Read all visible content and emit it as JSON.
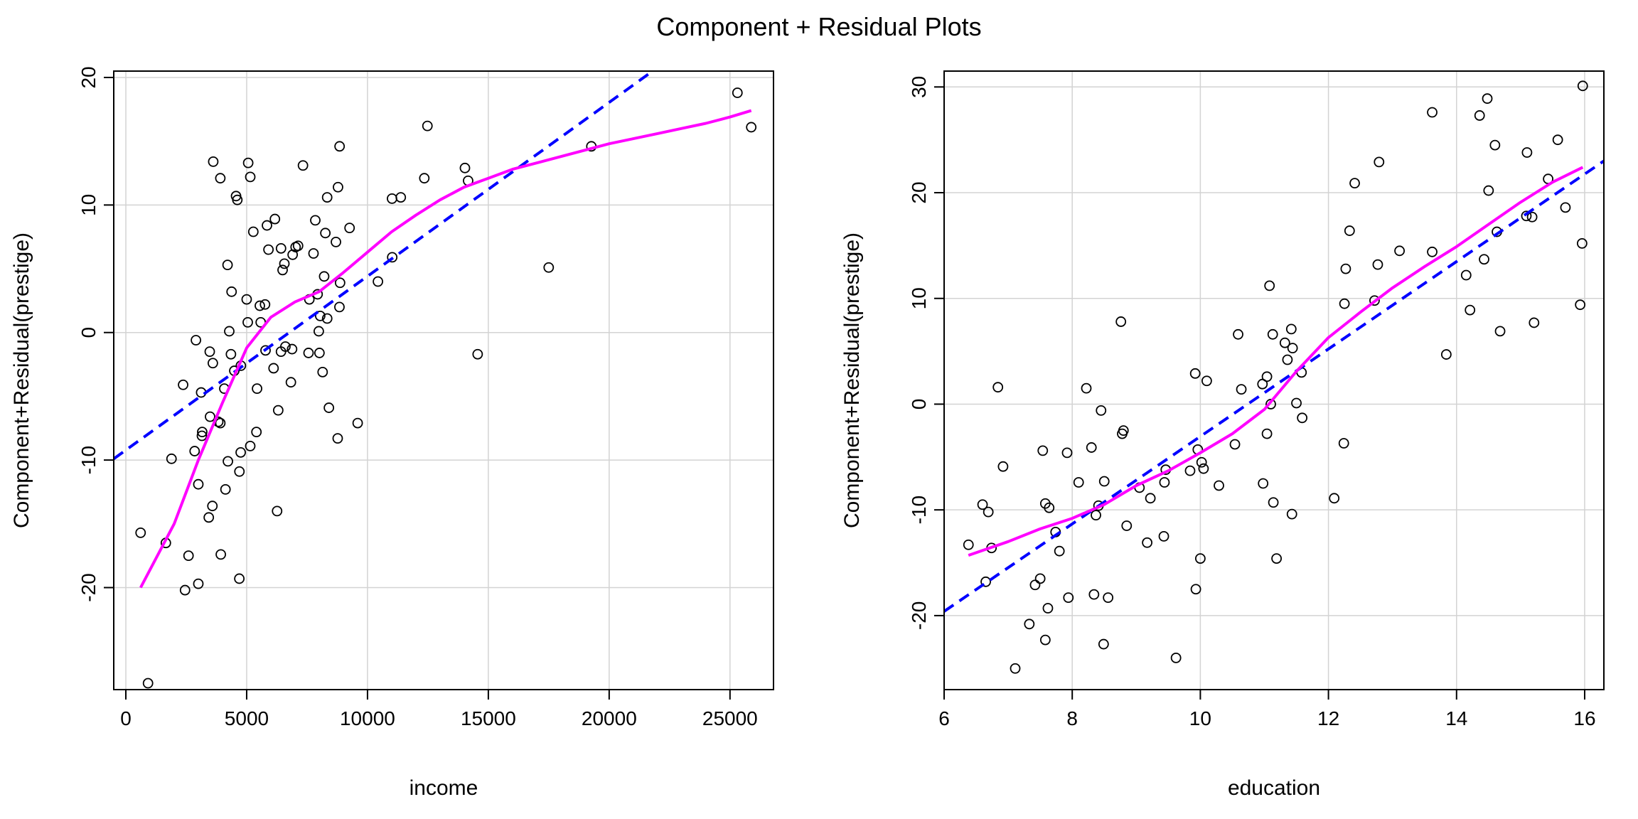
{
  "title": "Component + Residual Plots",
  "colors": {
    "points": "#000000",
    "fit_line": "#0000ff",
    "smooth_line": "#ff00ff",
    "grid": "#d3d3d3"
  },
  "chart_data": [
    {
      "type": "scatter",
      "title": "",
      "xlabel": "income",
      "ylabel": "Component+Residual(prestige)",
      "xlim": [
        -500,
        26800
      ],
      "ylim": [
        -28,
        20.5
      ],
      "xticks": [
        0,
        5000,
        10000,
        15000,
        20000,
        25000
      ],
      "yticks": [
        -20,
        -10,
        0,
        10,
        20
      ],
      "grid": true,
      "points": [
        [
          611,
          -15.7
        ],
        [
          918,
          -27.5
        ],
        [
          1656,
          -16.5
        ],
        [
          1890,
          -9.9
        ],
        [
          2370,
          -4.1
        ],
        [
          2450,
          -20.2
        ],
        [
          2594,
          -17.5
        ],
        [
          2847,
          -9.3
        ],
        [
          2901,
          -0.6
        ],
        [
          3000,
          -11.9
        ],
        [
          3000,
          -19.7
        ],
        [
          3161,
          -7.8
        ],
        [
          3148,
          -8.1
        ],
        [
          3116,
          -4.7
        ],
        [
          3485,
          -6.6
        ],
        [
          3432,
          -14.5
        ],
        [
          3472,
          -1.5
        ],
        [
          3582,
          -13.6
        ],
        [
          3600,
          -2.4
        ],
        [
          3617,
          13.4
        ],
        [
          3825,
          -7.0
        ],
        [
          3910,
          12.1
        ],
        [
          3930,
          -17.4
        ],
        [
          3910,
          -7.1
        ],
        [
          4075,
          -4.4
        ],
        [
          4123,
          -12.3
        ],
        [
          4209,
          5.3
        ],
        [
          4224,
          -10.1
        ],
        [
          4280,
          0.1
        ],
        [
          4349,
          -1.7
        ],
        [
          4376,
          3.2
        ],
        [
          4488,
          -3.0
        ],
        [
          4561,
          10.7
        ],
        [
          4614,
          10.4
        ],
        [
          4700,
          -10.9
        ],
        [
          4696,
          -19.3
        ],
        [
          4761,
          -2.6
        ],
        [
          4753,
          -9.4
        ],
        [
          5000,
          2.6
        ],
        [
          5045,
          0.8
        ],
        [
          5063,
          13.3
        ],
        [
          5149,
          12.2
        ],
        [
          5148,
          -8.9
        ],
        [
          5275,
          7.9
        ],
        [
          5404,
          -7.8
        ],
        [
          5430,
          -4.4
        ],
        [
          5545,
          2.1
        ],
        [
          5581,
          0.8
        ],
        [
          5760,
          2.2
        ],
        [
          5781,
          -1.4
        ],
        [
          5840,
          8.4
        ],
        [
          5902,
          6.5
        ],
        [
          6113,
          -2.8
        ],
        [
          6169,
          8.9
        ],
        [
          6306,
          -6.1
        ],
        [
          6259,
          -14.0
        ],
        [
          6422,
          6.6
        ],
        [
          6420,
          -1.5
        ],
        [
          6487,
          4.9
        ],
        [
          6561,
          5.4
        ],
        [
          6603,
          -1.1
        ],
        [
          6830,
          -3.9
        ],
        [
          6903,
          6.1
        ],
        [
          6879,
          -1.3
        ],
        [
          7025,
          6.7
        ],
        [
          7127,
          6.8
        ],
        [
          7330,
          13.1
        ],
        [
          7560,
          -1.6
        ],
        [
          7594,
          2.6
        ],
        [
          7766,
          6.2
        ],
        [
          7840,
          8.8
        ],
        [
          7936,
          3.0
        ],
        [
          8012,
          -1.6
        ],
        [
          7984,
          0.1
        ],
        [
          8043,
          1.3
        ],
        [
          8143,
          -3.1
        ],
        [
          8206,
          4.4
        ],
        [
          8256,
          7.8
        ],
        [
          8331,
          10.6
        ],
        [
          8332,
          1.1
        ],
        [
          8403,
          -5.9
        ],
        [
          8694,
          7.1
        ],
        [
          8766,
          -8.3
        ],
        [
          8845,
          14.6
        ],
        [
          8780,
          11.4
        ],
        [
          8865,
          3.9
        ],
        [
          8839,
          2.0
        ],
        [
          9258,
          8.2
        ],
        [
          9593,
          -7.1
        ],
        [
          10432,
          4.0
        ],
        [
          11015,
          10.5
        ],
        [
          11023,
          5.9
        ],
        [
          11377,
          10.6
        ],
        [
          12351,
          12.1
        ],
        [
          12480,
          16.2
        ],
        [
          14032,
          12.9
        ],
        [
          14163,
          11.9
        ],
        [
          14558,
          -1.7
        ],
        [
          17498,
          5.1
        ],
        [
          19263,
          14.6
        ],
        [
          25308,
          18.8
        ],
        [
          25879,
          16.1
        ]
      ],
      "linear_fit": {
        "x": [
          -500,
          21800
        ],
        "y": [
          -9.9,
          20.5
        ]
      },
      "smooth": {
        "x": [
          611,
          2000,
          3000,
          4000,
          5000,
          6000,
          7000,
          8000,
          9000,
          10000,
          11000,
          12000,
          13000,
          14000,
          15000,
          16000,
          17000,
          18000,
          19000,
          20000,
          21000,
          22000,
          23000,
          24000,
          25000,
          25879
        ],
        "y": [
          -20.0,
          -15.0,
          -10.0,
          -5.5,
          -1.2,
          1.2,
          2.4,
          3.2,
          4.7,
          6.3,
          7.9,
          9.2,
          10.4,
          11.4,
          12.1,
          12.8,
          13.3,
          13.8,
          14.3,
          14.8,
          15.2,
          15.6,
          16.0,
          16.4,
          16.9,
          17.4
        ]
      }
    },
    {
      "type": "scatter",
      "title": "",
      "xlabel": "education",
      "ylabel": "Component+Residual(prestige)",
      "xlim": [
        6.0,
        16.3
      ],
      "ylim": [
        -27,
        31.5
      ],
      "xticks": [
        6,
        8,
        10,
        12,
        14,
        16
      ],
      "yticks": [
        -20,
        -10,
        0,
        10,
        20,
        30
      ],
      "grid": true,
      "points": [
        [
          6.38,
          -13.3
        ],
        [
          6.6,
          -9.5
        ],
        [
          6.65,
          -16.8
        ],
        [
          6.69,
          -10.2
        ],
        [
          6.74,
          -13.6
        ],
        [
          6.84,
          1.6
        ],
        [
          6.92,
          -5.9
        ],
        [
          7.11,
          -25.0
        ],
        [
          7.33,
          -20.8
        ],
        [
          7.42,
          -17.1
        ],
        [
          7.5,
          -16.5
        ],
        [
          7.54,
          -4.4
        ],
        [
          7.58,
          -9.4
        ],
        [
          7.58,
          -22.3
        ],
        [
          7.62,
          -19.3
        ],
        [
          7.64,
          -9.8
        ],
        [
          7.74,
          -12.1
        ],
        [
          7.8,
          -13.9
        ],
        [
          7.92,
          -4.6
        ],
        [
          7.94,
          -18.3
        ],
        [
          8.1,
          -7.4
        ],
        [
          8.22,
          1.5
        ],
        [
          8.3,
          -4.1
        ],
        [
          8.34,
          -18.0
        ],
        [
          8.37,
          -10.5
        ],
        [
          8.41,
          -9.6
        ],
        [
          8.45,
          -0.6
        ],
        [
          8.49,
          -22.7
        ],
        [
          8.5,
          -7.3
        ],
        [
          8.56,
          -18.3
        ],
        [
          8.76,
          7.8
        ],
        [
          8.78,
          -2.8
        ],
        [
          8.8,
          -2.5
        ],
        [
          8.85,
          -11.5
        ],
        [
          9.05,
          -7.9
        ],
        [
          9.17,
          -13.1
        ],
        [
          9.22,
          -8.9
        ],
        [
          9.43,
          -12.5
        ],
        [
          9.44,
          -7.4
        ],
        [
          9.46,
          -6.2
        ],
        [
          9.62,
          -24.0
        ],
        [
          9.84,
          -6.3
        ],
        [
          9.92,
          2.9
        ],
        [
          9.93,
          -17.5
        ],
        [
          9.96,
          -4.3
        ],
        [
          10.0,
          -14.6
        ],
        [
          10.02,
          -5.5
        ],
        [
          10.05,
          -6.1
        ],
        [
          10.1,
          2.2
        ],
        [
          10.29,
          -7.7
        ],
        [
          10.54,
          -3.8
        ],
        [
          10.59,
          6.6
        ],
        [
          10.64,
          1.4
        ],
        [
          10.97,
          1.9
        ],
        [
          10.98,
          -7.5
        ],
        [
          11.04,
          -2.8
        ],
        [
          11.04,
          2.6
        ],
        [
          11.08,
          11.2
        ],
        [
          11.1,
          0.0
        ],
        [
          11.13,
          6.6
        ],
        [
          11.14,
          -9.3
        ],
        [
          11.19,
          -14.6
        ],
        [
          11.32,
          5.8
        ],
        [
          11.36,
          4.2
        ],
        [
          11.42,
          7.1
        ],
        [
          11.43,
          -10.4
        ],
        [
          11.44,
          5.3
        ],
        [
          11.5,
          0.1
        ],
        [
          11.58,
          3.0
        ],
        [
          11.59,
          -1.3
        ],
        [
          12.09,
          -8.9
        ],
        [
          12.24,
          -3.7
        ],
        [
          12.25,
          9.5
        ],
        [
          12.27,
          12.8
        ],
        [
          12.33,
          16.4
        ],
        [
          12.41,
          20.9
        ],
        [
          12.72,
          9.8
        ],
        [
          12.77,
          13.2
        ],
        [
          12.79,
          22.9
        ],
        [
          13.11,
          14.5
        ],
        [
          13.62,
          27.6
        ],
        [
          13.62,
          14.4
        ],
        [
          13.84,
          4.7
        ],
        [
          14.15,
          12.2
        ],
        [
          14.21,
          8.9
        ],
        [
          14.36,
          27.3
        ],
        [
          14.43,
          13.7
        ],
        [
          14.48,
          28.9
        ],
        [
          14.5,
          20.2
        ],
        [
          14.6,
          24.5
        ],
        [
          14.63,
          16.3
        ],
        [
          14.68,
          6.9
        ],
        [
          15.09,
          17.8
        ],
        [
          15.1,
          23.8
        ],
        [
          15.18,
          17.7
        ],
        [
          15.21,
          7.7
        ],
        [
          15.43,
          21.3
        ],
        [
          15.58,
          25.0
        ],
        [
          15.7,
          18.6
        ],
        [
          15.93,
          9.4
        ],
        [
          15.96,
          15.2
        ],
        [
          15.97,
          30.1
        ]
      ],
      "linear_fit": {
        "x": [
          6.0,
          16.3
        ],
        "y": [
          -19.6,
          23.0
        ]
      },
      "smooth": {
        "x": [
          6.38,
          7.0,
          7.5,
          8.0,
          8.5,
          9.0,
          9.5,
          10.0,
          10.5,
          11.0,
          11.5,
          12.0,
          12.5,
          13.0,
          13.5,
          14.0,
          14.5,
          15.0,
          15.5,
          15.97
        ],
        "y": [
          -14.3,
          -13.0,
          -11.8,
          -10.8,
          -9.5,
          -7.7,
          -6.3,
          -4.6,
          -2.8,
          -0.5,
          3.1,
          6.3,
          8.7,
          11.0,
          13.0,
          14.9,
          17.0,
          19.1,
          21.0,
          22.4
        ]
      }
    }
  ]
}
